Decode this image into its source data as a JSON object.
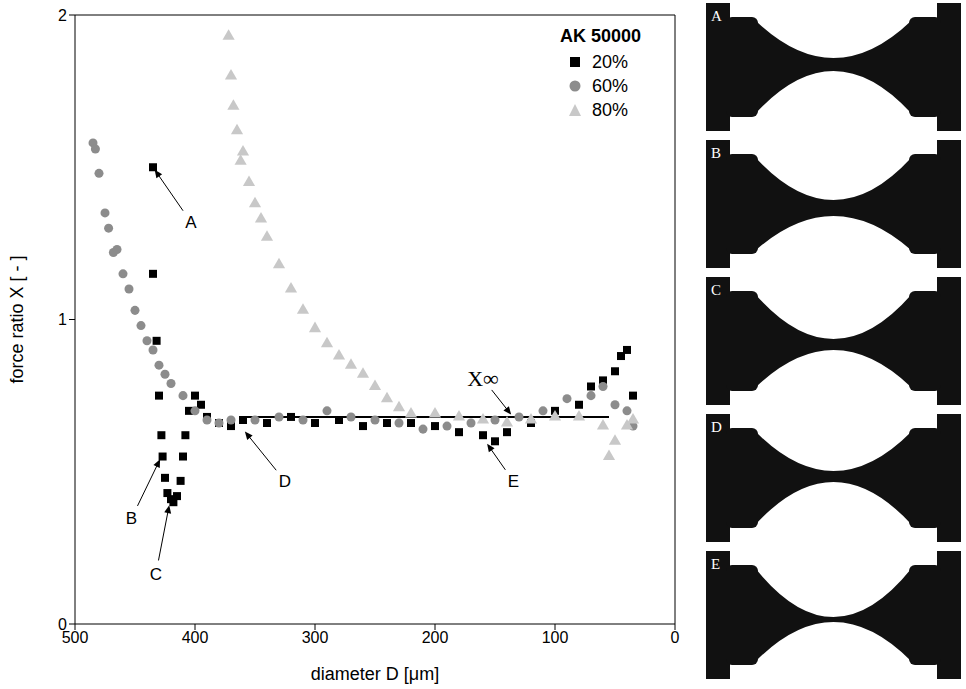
{
  "chart_data": {
    "type": "scatter",
    "xlabel": "diameter D [μm]",
    "ylabel": "force ratio X [ - ]",
    "legend_title": "AK 50000",
    "legend": "top-right",
    "xlim": [
      500,
      0
    ],
    "ylim": [
      0,
      2
    ],
    "xticks": [
      500,
      400,
      300,
      200,
      100,
      0
    ],
    "yticks": [
      0,
      1,
      2
    ],
    "grid": false,
    "series": [
      {
        "name": "20%",
        "color": "#000000",
        "marker": "square",
        "values": [
          {
            "x": 435,
            "y": 1.5
          },
          {
            "x": 435,
            "y": 1.15
          },
          {
            "x": 432,
            "y": 0.93
          },
          {
            "x": 430,
            "y": 0.75
          },
          {
            "x": 428,
            "y": 0.62
          },
          {
            "x": 427,
            "y": 0.55
          },
          {
            "x": 425,
            "y": 0.48
          },
          {
            "x": 423,
            "y": 0.43
          },
          {
            "x": 420,
            "y": 0.41
          },
          {
            "x": 418,
            "y": 0.4
          },
          {
            "x": 415,
            "y": 0.42
          },
          {
            "x": 412,
            "y": 0.47
          },
          {
            "x": 410,
            "y": 0.55
          },
          {
            "x": 408,
            "y": 0.62
          },
          {
            "x": 405,
            "y": 0.7
          },
          {
            "x": 400,
            "y": 0.75
          },
          {
            "x": 395,
            "y": 0.72
          },
          {
            "x": 390,
            "y": 0.68
          },
          {
            "x": 380,
            "y": 0.66
          },
          {
            "x": 370,
            "y": 0.65
          },
          {
            "x": 360,
            "y": 0.67
          },
          {
            "x": 340,
            "y": 0.66
          },
          {
            "x": 320,
            "y": 0.68
          },
          {
            "x": 300,
            "y": 0.66
          },
          {
            "x": 280,
            "y": 0.67
          },
          {
            "x": 260,
            "y": 0.65
          },
          {
            "x": 240,
            "y": 0.66
          },
          {
            "x": 220,
            "y": 0.66
          },
          {
            "x": 200,
            "y": 0.65
          },
          {
            "x": 180,
            "y": 0.63
          },
          {
            "x": 160,
            "y": 0.62
          },
          {
            "x": 150,
            "y": 0.6
          },
          {
            "x": 140,
            "y": 0.63
          },
          {
            "x": 120,
            "y": 0.66
          },
          {
            "x": 100,
            "y": 0.7
          },
          {
            "x": 80,
            "y": 0.72
          },
          {
            "x": 70,
            "y": 0.78
          },
          {
            "x": 60,
            "y": 0.8
          },
          {
            "x": 50,
            "y": 0.83
          },
          {
            "x": 45,
            "y": 0.88
          },
          {
            "x": 40,
            "y": 0.9
          },
          {
            "x": 35,
            "y": 0.75
          }
        ]
      },
      {
        "name": "60%",
        "color": "#8c8c8c",
        "marker": "circle",
        "values": [
          {
            "x": 485,
            "y": 1.58
          },
          {
            "x": 483,
            "y": 1.56
          },
          {
            "x": 480,
            "y": 1.48
          },
          {
            "x": 475,
            "y": 1.35
          },
          {
            "x": 472,
            "y": 1.3
          },
          {
            "x": 468,
            "y": 1.22
          },
          {
            "x": 465,
            "y": 1.23
          },
          {
            "x": 460,
            "y": 1.15
          },
          {
            "x": 455,
            "y": 1.1
          },
          {
            "x": 450,
            "y": 1.03
          },
          {
            "x": 445,
            "y": 0.98
          },
          {
            "x": 440,
            "y": 0.93
          },
          {
            "x": 435,
            "y": 0.9
          },
          {
            "x": 430,
            "y": 0.85
          },
          {
            "x": 425,
            "y": 0.82
          },
          {
            "x": 420,
            "y": 0.79
          },
          {
            "x": 410,
            "y": 0.75
          },
          {
            "x": 400,
            "y": 0.7
          },
          {
            "x": 390,
            "y": 0.67
          },
          {
            "x": 380,
            "y": 0.66
          },
          {
            "x": 370,
            "y": 0.67
          },
          {
            "x": 350,
            "y": 0.67
          },
          {
            "x": 330,
            "y": 0.68
          },
          {
            "x": 310,
            "y": 0.67
          },
          {
            "x": 290,
            "y": 0.7
          },
          {
            "x": 270,
            "y": 0.68
          },
          {
            "x": 250,
            "y": 0.67
          },
          {
            "x": 230,
            "y": 0.66
          },
          {
            "x": 210,
            "y": 0.64
          },
          {
            "x": 190,
            "y": 0.65
          },
          {
            "x": 170,
            "y": 0.66
          },
          {
            "x": 150,
            "y": 0.67
          },
          {
            "x": 130,
            "y": 0.68
          },
          {
            "x": 110,
            "y": 0.7
          },
          {
            "x": 90,
            "y": 0.74
          },
          {
            "x": 70,
            "y": 0.75
          },
          {
            "x": 60,
            "y": 0.78
          },
          {
            "x": 50,
            "y": 0.72
          },
          {
            "x": 40,
            "y": 0.7
          },
          {
            "x": 35,
            "y": 0.65
          }
        ]
      },
      {
        "name": "80%",
        "color": "#c8c8c8",
        "marker": "triangle",
        "values": [
          {
            "x": 372,
            "y": 1.93
          },
          {
            "x": 370,
            "y": 1.8
          },
          {
            "x": 368,
            "y": 1.7
          },
          {
            "x": 365,
            "y": 1.62
          },
          {
            "x": 362,
            "y": 1.52
          },
          {
            "x": 360,
            "y": 1.55
          },
          {
            "x": 355,
            "y": 1.45
          },
          {
            "x": 350,
            "y": 1.38
          },
          {
            "x": 345,
            "y": 1.33
          },
          {
            "x": 340,
            "y": 1.27
          },
          {
            "x": 330,
            "y": 1.18
          },
          {
            "x": 320,
            "y": 1.1
          },
          {
            "x": 310,
            "y": 1.03
          },
          {
            "x": 300,
            "y": 0.97
          },
          {
            "x": 290,
            "y": 0.92
          },
          {
            "x": 280,
            "y": 0.88
          },
          {
            "x": 270,
            "y": 0.85
          },
          {
            "x": 260,
            "y": 0.82
          },
          {
            "x": 250,
            "y": 0.78
          },
          {
            "x": 240,
            "y": 0.74
          },
          {
            "x": 230,
            "y": 0.71
          },
          {
            "x": 220,
            "y": 0.69
          },
          {
            "x": 200,
            "y": 0.69
          },
          {
            "x": 180,
            "y": 0.68
          },
          {
            "x": 160,
            "y": 0.67
          },
          {
            "x": 140,
            "y": 0.66
          },
          {
            "x": 120,
            "y": 0.67
          },
          {
            "x": 100,
            "y": 0.68
          },
          {
            "x": 80,
            "y": 0.68
          },
          {
            "x": 60,
            "y": 0.65
          },
          {
            "x": 55,
            "y": 0.55
          },
          {
            "x": 50,
            "y": 0.6
          },
          {
            "x": 40,
            "y": 0.65
          },
          {
            "x": 35,
            "y": 0.67
          }
        ]
      }
    ],
    "x_inf": {
      "label": "X∞",
      "value": 0.68,
      "x_range": [
        360,
        55
      ],
      "pointer": {
        "x": 135,
        "y": 0.68
      }
    },
    "annotations": [
      {
        "text": "A",
        "x": 435,
        "y": 1.5
      },
      {
        "text": "B",
        "x": 428,
        "y": 0.55
      },
      {
        "text": "C",
        "x": 421,
        "y": 0.4
      },
      {
        "text": "D",
        "x": 360,
        "y": 0.64
      },
      {
        "text": "E",
        "x": 158,
        "y": 0.6
      }
    ],
    "panels": [
      "A",
      "B",
      "C",
      "D",
      "E"
    ]
  }
}
